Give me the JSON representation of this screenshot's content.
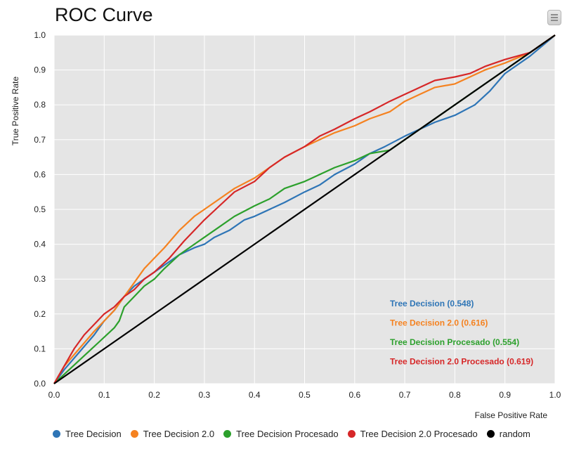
{
  "chart_data": {
    "type": "line",
    "title": "ROC Curve",
    "xlabel": "False Positive Rate",
    "ylabel": "True Positive Rate",
    "xlim": [
      0,
      1
    ],
    "ylim": [
      0,
      1
    ],
    "xticks": [
      "0.0",
      "0.1",
      "0.2",
      "0.3",
      "0.4",
      "0.5",
      "0.6",
      "0.7",
      "0.8",
      "0.9",
      "1.0"
    ],
    "yticks": [
      "0.0",
      "0.1",
      "0.2",
      "0.3",
      "0.4",
      "0.5",
      "0.6",
      "0.7",
      "0.8",
      "0.9",
      "1.0"
    ],
    "grid": true,
    "legend_position": "bottom",
    "series": [
      {
        "name": "Tree Decision",
        "auc_label": "Tree Decision (0.548)",
        "color": "#2e75b6",
        "x": [
          0,
          0.02,
          0.05,
          0.08,
          0.1,
          0.12,
          0.14,
          0.16,
          0.18,
          0.2,
          0.22,
          0.25,
          0.28,
          0.3,
          0.32,
          0.35,
          0.38,
          0.4,
          0.43,
          0.46,
          0.5,
          0.53,
          0.56,
          0.6,
          0.63,
          0.66,
          0.7,
          0.73,
          0.76,
          0.8,
          0.84,
          0.87,
          0.9,
          0.95,
          1.0
        ],
        "y": [
          0,
          0.04,
          0.09,
          0.14,
          0.18,
          0.21,
          0.25,
          0.28,
          0.3,
          0.32,
          0.34,
          0.37,
          0.39,
          0.4,
          0.42,
          0.44,
          0.47,
          0.48,
          0.5,
          0.52,
          0.55,
          0.57,
          0.6,
          0.63,
          0.66,
          0.68,
          0.71,
          0.73,
          0.75,
          0.77,
          0.8,
          0.84,
          0.89,
          0.94,
          1.0
        ]
      },
      {
        "name": "Tree Decision 2.0",
        "auc_label": "Tree Decision 2.0 (0.616)",
        "color": "#f58220",
        "x": [
          0,
          0.02,
          0.05,
          0.08,
          0.1,
          0.12,
          0.14,
          0.16,
          0.18,
          0.2,
          0.22,
          0.25,
          0.28,
          0.3,
          0.33,
          0.36,
          0.4,
          0.43,
          0.46,
          0.5,
          0.53,
          0.56,
          0.6,
          0.63,
          0.67,
          0.7,
          0.73,
          0.76,
          0.8,
          0.83,
          0.86,
          0.9,
          0.95,
          1.0
        ],
        "y": [
          0,
          0.05,
          0.1,
          0.15,
          0.18,
          0.21,
          0.25,
          0.29,
          0.33,
          0.36,
          0.39,
          0.44,
          0.48,
          0.5,
          0.53,
          0.56,
          0.59,
          0.62,
          0.65,
          0.68,
          0.7,
          0.72,
          0.74,
          0.76,
          0.78,
          0.81,
          0.83,
          0.85,
          0.86,
          0.88,
          0.9,
          0.92,
          0.95,
          1.0
        ]
      },
      {
        "name": "Tree Decision Procesado",
        "auc_label": "Tree Decision Procesado (0.554)",
        "color": "#2ca02c",
        "x": [
          0,
          0.03,
          0.06,
          0.09,
          0.12,
          0.13,
          0.14,
          0.16,
          0.18,
          0.2,
          0.22,
          0.25,
          0.28,
          0.3,
          0.33,
          0.36,
          0.4,
          0.43,
          0.46,
          0.5,
          0.53,
          0.56,
          0.6,
          0.63,
          0.67,
          0.7,
          0.75,
          0.8,
          0.85,
          0.9,
          0.95,
          1.0
        ],
        "y": [
          0,
          0.04,
          0.08,
          0.12,
          0.16,
          0.18,
          0.22,
          0.25,
          0.28,
          0.3,
          0.33,
          0.37,
          0.4,
          0.42,
          0.45,
          0.48,
          0.51,
          0.53,
          0.56,
          0.58,
          0.6,
          0.62,
          0.64,
          0.66,
          0.67,
          0.7,
          0.75,
          0.8,
          0.85,
          0.9,
          0.95,
          1.0
        ]
      },
      {
        "name": "Tree Decision 2.0 Procesado",
        "auc_label": "Tree Decision 2.0 Procesado (0.619)",
        "color": "#d62728",
        "x": [
          0,
          0.02,
          0.04,
          0.06,
          0.08,
          0.1,
          0.12,
          0.14,
          0.16,
          0.18,
          0.2,
          0.23,
          0.26,
          0.3,
          0.33,
          0.36,
          0.4,
          0.43,
          0.46,
          0.5,
          0.53,
          0.56,
          0.6,
          0.63,
          0.67,
          0.7,
          0.73,
          0.76,
          0.8,
          0.83,
          0.86,
          0.9,
          0.95,
          1.0
        ],
        "y": [
          0,
          0.05,
          0.1,
          0.14,
          0.17,
          0.2,
          0.22,
          0.25,
          0.27,
          0.3,
          0.32,
          0.36,
          0.41,
          0.47,
          0.51,
          0.55,
          0.58,
          0.62,
          0.65,
          0.68,
          0.71,
          0.73,
          0.76,
          0.78,
          0.81,
          0.83,
          0.85,
          0.87,
          0.88,
          0.89,
          0.91,
          0.93,
          0.95,
          1.0
        ]
      },
      {
        "name": "random",
        "auc_label": "",
        "color": "#000000",
        "x": [
          0,
          1
        ],
        "y": [
          0,
          1
        ]
      }
    ]
  },
  "ui": {
    "menu_icon": "hamburger-icon",
    "plot_background": "#e5e5e5",
    "grid_color": "#ffffff"
  }
}
